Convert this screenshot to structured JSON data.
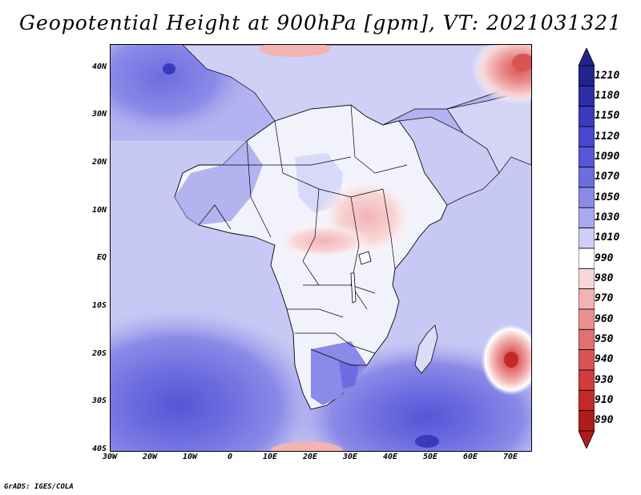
{
  "title": "Geopotential Height at 900hPa [gpm], VT: 2021031321",
  "credit": "GrADS: IGES/COLA",
  "map": {
    "lon_range": [
      -30,
      75
    ],
    "lat_range": [
      -40,
      45
    ],
    "lat_labels": [
      "40N",
      "30N",
      "20N",
      "10N",
      "EQ",
      "10S",
      "20S",
      "30S",
      "40S"
    ],
    "lat_values": [
      40,
      30,
      20,
      10,
      0,
      -10,
      -20,
      -30,
      -40
    ],
    "lon_labels": [
      "30W",
      "20W",
      "10W",
      "0",
      "10E",
      "20E",
      "30E",
      "40E",
      "50E",
      "60E",
      "70E"
    ],
    "lon_values": [
      -30,
      -20,
      -10,
      0,
      10,
      20,
      30,
      40,
      50,
      60,
      70
    ],
    "land_color": "#ffffff",
    "features": [
      {
        "name": "subtropical-high-south-atlantic",
        "lon": -10,
        "lat": -32,
        "value": 1070
      },
      {
        "name": "subtropical-high-south-indian",
        "lon": 52,
        "lat": -33,
        "value": 1070
      },
      {
        "name": "azores-high",
        "lon": -13,
        "lat": 40,
        "value": 1070
      },
      {
        "name": "cyclone-indian-ocean",
        "lon": 70,
        "lat": -21,
        "value": 950
      },
      {
        "name": "low-central-asia",
        "lon": 72,
        "lat": 42,
        "value": 940
      },
      {
        "name": "heat-low-sudan",
        "lon": 33,
        "lat": 10,
        "value": 980
      }
    ]
  },
  "colorbar": {
    "labels": [
      "1210",
      "1180",
      "1150",
      "1120",
      "1090",
      "1070",
      "1050",
      "1030",
      "1010",
      "990",
      "980",
      "970",
      "960",
      "950",
      "940",
      "930",
      "910",
      "890"
    ],
    "colors": [
      "#23238c",
      "#2e2ea6",
      "#3a3abd",
      "#4747cf",
      "#5656d8",
      "#6d6de0",
      "#8a8ae8",
      "#a9a9ef",
      "#cfcff6",
      "#ffffff",
      "#f9d6d6",
      "#f2b3b3",
      "#ea9090",
      "#e27070",
      "#d95555",
      "#cf3d3d",
      "#c22a2a",
      "#b01c1c"
    ]
  }
}
